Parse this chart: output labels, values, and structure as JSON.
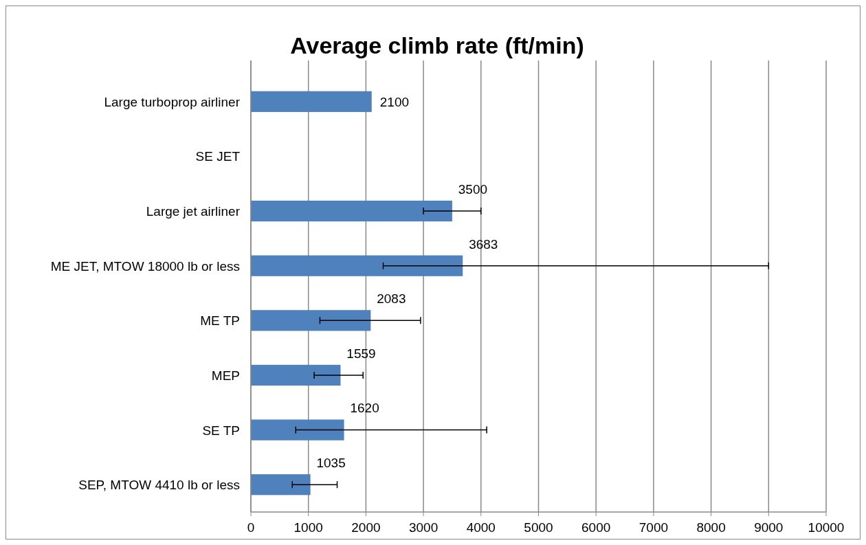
{
  "chart_data": {
    "type": "bar",
    "orientation": "horizontal",
    "title": "Average climb rate (ft/min)",
    "categories": [
      "Large turboprop airliner",
      "SE JET",
      "Large jet airliner",
      "ME JET, MTOW 18000 lb or less",
      "ME TP",
      "MEP",
      "SE TP",
      "SEP, MTOW 4410 lb or less"
    ],
    "values": [
      2100,
      null,
      3500,
      3683,
      2083,
      1559,
      1620,
      1035
    ],
    "errors": [
      null,
      null,
      [
        3000,
        4000
      ],
      [
        2300,
        9000
      ],
      [
        1200,
        2950
      ],
      [
        1100,
        1950
      ],
      [
        780,
        4100
      ],
      [
        720,
        1500
      ]
    ],
    "color": "#4f81bd",
    "xlim": [
      0,
      10000
    ],
    "xticks": [
      0,
      1000,
      2000,
      3000,
      4000,
      5000,
      6000,
      7000,
      8000,
      9000,
      10000
    ],
    "grid": "x",
    "data_labels": true
  }
}
